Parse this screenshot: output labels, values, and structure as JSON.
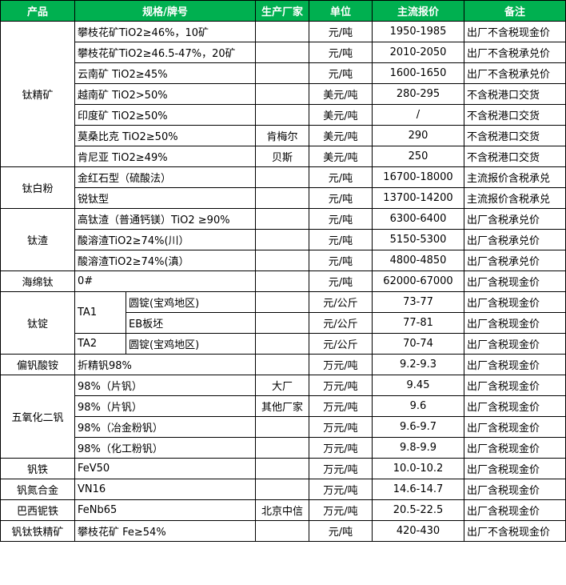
{
  "table": {
    "header": [
      "产品",
      "规格/牌号",
      "生产厂家",
      "单位",
      "主流报价",
      "备注"
    ],
    "groups": [
      {
        "product": "钛精矿",
        "rows": [
          {
            "spec": "攀枝花矿TiO2≥46%，10矿",
            "unit": "元/吨",
            "price": "1950-1985",
            "note": "出厂不含税现金价"
          },
          {
            "spec": "攀枝花矿TiO2≥46.5-47%，20矿",
            "unit": "元/吨",
            "price": "2010-2050",
            "note": "出厂不含税承兑价"
          },
          {
            "spec": "云南矿 TiO2≥45%",
            "unit": "元/吨",
            "price": "1600-1650",
            "note": "出厂不含税承兑价"
          },
          {
            "spec": "越南矿 TiO2>50%",
            "unit": "美元/吨",
            "price": "280-295",
            "note": "不含税港口交货"
          },
          {
            "spec": "印度矿 TiO2≥50%",
            "unit": "美元/吨",
            "price": "/",
            "note": "不含税港口交货"
          },
          {
            "spec": "莫桑比克 TiO2≥50%",
            "maker": "肯梅尔",
            "unit": "美元/吨",
            "price": "290",
            "note": "不含税港口交货"
          },
          {
            "spec": "肯尼亚 TiO2≥49%",
            "maker": "贝斯",
            "unit": "美元/吨",
            "price": "250",
            "note": "不含税港口交货"
          }
        ]
      },
      {
        "product": "钛白粉",
        "rows": [
          {
            "spec": "金红石型（硫酸法）",
            "unit": "元/吨",
            "price": "16700-18000",
            "note": "主流报价含税承兑"
          },
          {
            "spec": "锐钛型",
            "unit": "元/吨",
            "price": "13700-14200",
            "note": "主流报价含税承兑"
          }
        ]
      },
      {
        "product": "钛渣",
        "rows": [
          {
            "spec": "高钛渣（普通钙镁）TiO2 ≥90%",
            "unit": "元/吨",
            "price": "6300-6400",
            "note": "出厂含税承兑价"
          },
          {
            "spec": "酸溶渣TiO2≥74%(川）",
            "unit": "元/吨",
            "price": "5150-5300",
            "note": "出厂含税承兑价"
          },
          {
            "spec": "酸溶渣TiO2≥74%(滇）",
            "unit": "元/吨",
            "price": "4800-4850",
            "note": "出厂含税承兑价"
          }
        ]
      },
      {
        "product": "海绵钛",
        "rows": [
          {
            "spec": "0#",
            "unit": "元/吨",
            "price": "62000-67000",
            "note": "出厂含税现金价"
          }
        ]
      },
      {
        "product": "钛锭",
        "rows": [
          {
            "grade": "TA1",
            "spec": "圆锭(宝鸡地区)",
            "unit": "元/公斤",
            "price": "73-77",
            "note": "出厂含税现金价"
          },
          {
            "spec": "EB板坯",
            "unit": "元/公斤",
            "price": "77-81",
            "note": "出厂含税现金价"
          },
          {
            "grade": "TA2",
            "spec": "圆锭(宝鸡地区)",
            "unit": "元/公斤",
            "price": "70-74",
            "note": "出厂含税现金价"
          }
        ]
      },
      {
        "product": "偏钒酸铵",
        "rows": [
          {
            "spec": "折精钒98%",
            "unit": "万元/吨",
            "price": "9.2-9.3",
            "note": "出厂含税现金价"
          }
        ]
      },
      {
        "product": "五氧化二钒",
        "rows": [
          {
            "spec": "98%（片钒）",
            "maker": "大厂",
            "unit": "万元/吨",
            "price": "9.45",
            "note": "出厂含税现金价"
          },
          {
            "spec": "98%（片钒）",
            "maker": "其他厂家",
            "unit": "万元/吨",
            "price": "9.6",
            "note": "出厂含税现金价"
          },
          {
            "spec": "98%（冶金粉钒）",
            "unit": "万元/吨",
            "price": "9.6-9.7",
            "note": "出厂含税现金价"
          },
          {
            "spec": "98%（化工粉钒）",
            "unit": "万元/吨",
            "price": "9.8-9.9",
            "note": "出厂含税现金价"
          }
        ]
      },
      {
        "product": "钒铁",
        "rows": [
          {
            "spec": "FeV50",
            "unit": "万元/吨",
            "price": "10.0-10.2",
            "note": "出厂含税现金价"
          }
        ]
      },
      {
        "product": "钒氮合金",
        "rows": [
          {
            "spec": "VN16",
            "unit": "万元/吨",
            "price": "14.6-14.7",
            "note": "出厂含税现金价"
          }
        ]
      },
      {
        "product": "巴西铌铁",
        "rows": [
          {
            "spec": "FeNb65",
            "maker": "北京中信",
            "unit": "万元/吨",
            "price": "20.5-22.5",
            "note": "出厂含税现金价"
          }
        ]
      },
      {
        "product": "钒钛铁精矿",
        "rows": [
          {
            "spec": "攀枝花矿 Fe≥54%",
            "unit": "元/吨",
            "price": "420-430",
            "note": "出厂不含税现金价"
          }
        ]
      }
    ]
  }
}
